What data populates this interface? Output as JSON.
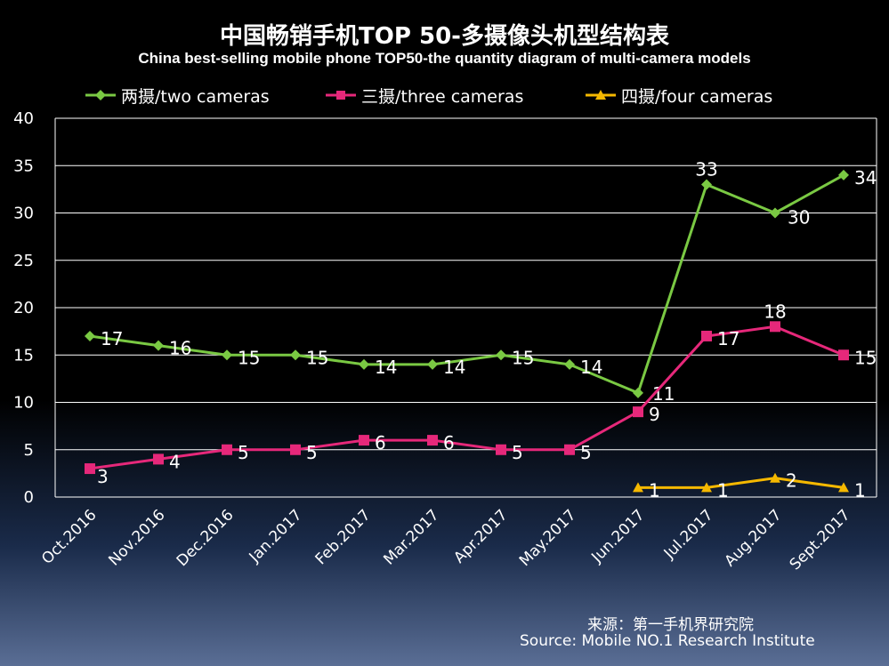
{
  "title_zh": "中国畅销手机TOP 50-多摄像头机型结构表",
  "title_en": "China best-selling  mobile  phone  TOP50-the quantity  diagram  of multi-camera  models",
  "source_zh": "来源：第一手机界研究院",
  "source_en": "Source: Mobile NO.1 Research Institute",
  "colors": {
    "background": "#000000",
    "grid": "#ffffff",
    "two": "#7ac943",
    "three": "#e6287a",
    "four": "#f5b800",
    "text": "#ffffff"
  },
  "chart_data": {
    "type": "line",
    "categories": [
      "Oct.2016",
      "Nov.2016",
      "Dec.2016",
      "Jan.2017",
      "Feb.2017",
      "Mar.2017",
      "Apr.2017",
      "May.2017",
      "Jun.2017",
      "Jul.2017",
      "Aug.2017",
      "Sept.2017"
    ],
    "ylim": [
      0,
      40
    ],
    "yticks": [
      0,
      5,
      10,
      15,
      20,
      25,
      30,
      35,
      40
    ],
    "grid": true,
    "legend_position": "top",
    "series": [
      {
        "name": "两摄/two cameras",
        "key": "two",
        "marker": "diamond",
        "values": [
          17,
          16,
          15,
          15,
          14,
          14,
          15,
          14,
          11,
          33,
          30,
          34
        ]
      },
      {
        "name": "三摄/three cameras",
        "key": "three",
        "marker": "square",
        "values": [
          3,
          4,
          5,
          5,
          6,
          6,
          5,
          5,
          9,
          17,
          18,
          15
        ]
      },
      {
        "name": "四摄/four cameras",
        "key": "four",
        "marker": "triangle",
        "values": [
          null,
          null,
          null,
          null,
          null,
          null,
          null,
          null,
          1,
          1,
          2,
          1
        ]
      }
    ]
  }
}
